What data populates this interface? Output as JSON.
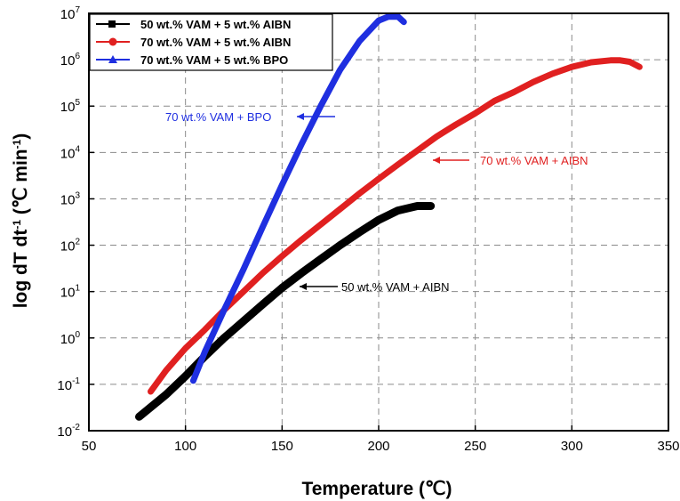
{
  "chart_data": {
    "type": "line",
    "xlabel": "Temperature (℃)",
    "ylabel_main": "log dT dt",
    "ylabel_sup": "-1",
    "ylabel_unit": "(℃ min",
    "ylabel_unit_sup": "-1",
    "ylabel_close": ")",
    "y_scale": "log",
    "xlim": [
      50,
      350
    ],
    "ylim_exponents": [
      -2,
      7
    ],
    "x_ticks": [
      50,
      100,
      150,
      200,
      250,
      300,
      350
    ],
    "y_tick_base": "10",
    "y_tick_exponents": [
      "-2",
      "-1",
      "0",
      "1",
      "2",
      "3",
      "4",
      "5",
      "6",
      "7"
    ],
    "grid": true,
    "legend_position": "top-left",
    "series": [
      {
        "name": "50 wt.% VAM + 5 wt.% AIBN",
        "color": "#000000",
        "marker": "square",
        "x": [
          76,
          90,
          100,
          110,
          120,
          130,
          140,
          150,
          160,
          170,
          180,
          190,
          200,
          210,
          220,
          227
        ],
        "y": [
          0.02,
          0.06,
          0.15,
          0.4,
          1.0,
          2.3,
          5.3,
          12,
          25,
          50,
          100,
          190,
          350,
          560,
          700,
          700
        ]
      },
      {
        "name": "70 wt.% VAM + 5 wt.% AIBN",
        "color": "#e02020",
        "marker": "circle",
        "x": [
          82,
          90,
          100,
          110,
          120,
          130,
          140,
          150,
          160,
          170,
          180,
          190,
          200,
          210,
          220,
          230,
          240,
          250,
          260,
          270,
          280,
          290,
          300,
          310,
          320,
          325,
          330,
          335
        ],
        "y": [
          0.07,
          0.2,
          0.6,
          1.5,
          4,
          10,
          25,
          58,
          130,
          280,
          600,
          1300,
          2700,
          5500,
          11000,
          22000,
          40000,
          70000,
          130000,
          200000,
          330000,
          500000,
          700000,
          880000,
          970000,
          970000,
          900000,
          700000
        ]
      },
      {
        "name": "70 wt.% VAM + 5 wt.% BPO",
        "color": "#1f2fe0",
        "marker": "triangle",
        "x": [
          104,
          110,
          120,
          130,
          140,
          150,
          160,
          170,
          180,
          190,
          200,
          205,
          210,
          213
        ],
        "y": [
          0.12,
          0.5,
          4,
          30,
          250,
          2000,
          15000,
          100000,
          600000,
          2500000,
          7000000,
          8500000,
          8500000,
          6500000
        ]
      }
    ],
    "annotations": [
      {
        "text": "70 wt.% VAM + BPO",
        "color": "#1f2fe0"
      },
      {
        "text": "70 wt.% VAM + AIBN",
        "color": "#e02020"
      },
      {
        "text": "50 wt.% VAM + AIBN",
        "color": "#000000"
      }
    ]
  }
}
